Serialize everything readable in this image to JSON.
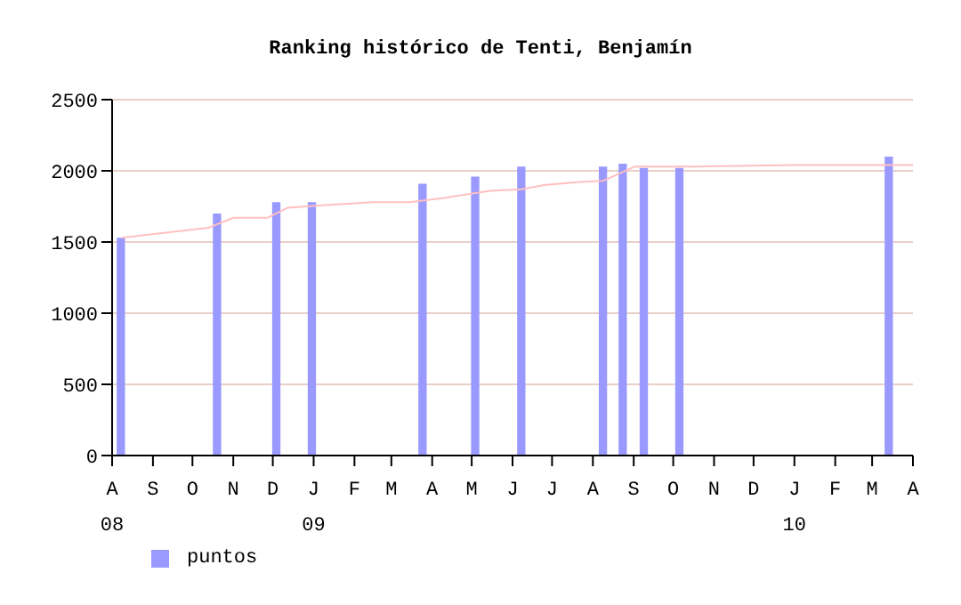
{
  "chart_data": {
    "type": "bar",
    "title": "Ranking histórico de Tenti, Benjamín",
    "x": [
      "2008-08-08",
      "2008-10-20",
      "2008-12-04",
      "2008-12-31",
      "2009-03-25",
      "2009-05-04",
      "2009-06-08",
      "2009-08-09",
      "2009-08-24",
      "2009-09-09",
      "2009-10-06",
      "2010-03-14"
    ],
    "series": [
      {
        "name": "puntos",
        "color": "#9999ff",
        "values": [
          1530,
          1700,
          1780,
          1780,
          1910,
          1960,
          2030,
          2030,
          2050,
          2020,
          2020,
          2100
        ]
      },
      {
        "type": "line",
        "color": "#ffc0c0",
        "x": [
          "2008-08-08",
          "2008-10-13",
          "2008-11-01",
          "2008-11-27",
          "2008-12-12",
          "2009-01-10",
          "2009-02-15",
          "2009-03-15",
          "2009-04-10",
          "2009-05-15",
          "2009-06-08",
          "2009-06-25",
          "2009-07-20",
          "2009-08-09",
          "2009-09-02",
          "2009-10-15",
          "2010-01-01",
          "2010-04-01"
        ],
        "values": [
          1530,
          1600,
          1670,
          1670,
          1740,
          1760,
          1780,
          1780,
          1810,
          1860,
          1870,
          1900,
          1920,
          1930,
          2030,
          2030,
          2040,
          2040
        ]
      }
    ],
    "xlim": [
      "2008-08-01",
      "2010-04-01"
    ],
    "xticks": [
      {
        "value": "2008-08-01",
        "label": "A\n08"
      },
      {
        "value": "2008-09-01",
        "label": "S"
      },
      {
        "value": "2008-10-01",
        "label": "O"
      },
      {
        "value": "2008-11-01",
        "label": "N"
      },
      {
        "value": "2008-12-01",
        "label": "D"
      },
      {
        "value": "2009-01-01",
        "label": "J\n09"
      },
      {
        "value": "2009-02-01",
        "label": "F"
      },
      {
        "value": "2009-03-01",
        "label": "M"
      },
      {
        "value": "2009-04-01",
        "label": "A"
      },
      {
        "value": "2009-05-01",
        "label": "M"
      },
      {
        "value": "2009-06-01",
        "label": "J"
      },
      {
        "value": "2009-07-01",
        "label": "J"
      },
      {
        "value": "2009-08-01",
        "label": "A"
      },
      {
        "value": "2009-09-01",
        "label": "S"
      },
      {
        "value": "2009-10-01",
        "label": "O"
      },
      {
        "value": "2009-11-01",
        "label": "N"
      },
      {
        "value": "2009-12-01",
        "label": "D"
      },
      {
        "value": "2010-01-01",
        "label": "J\n10"
      },
      {
        "value": "2010-02-01",
        "label": "F"
      },
      {
        "value": "2010-03-01",
        "label": "M"
      },
      {
        "value": "2010-04-01",
        "label": "A"
      }
    ],
    "ylim": [
      0,
      2500
    ],
    "yticks": [
      0,
      500,
      1000,
      1500,
      2000,
      2500
    ],
    "grid": "y",
    "legend": "bottom left"
  }
}
